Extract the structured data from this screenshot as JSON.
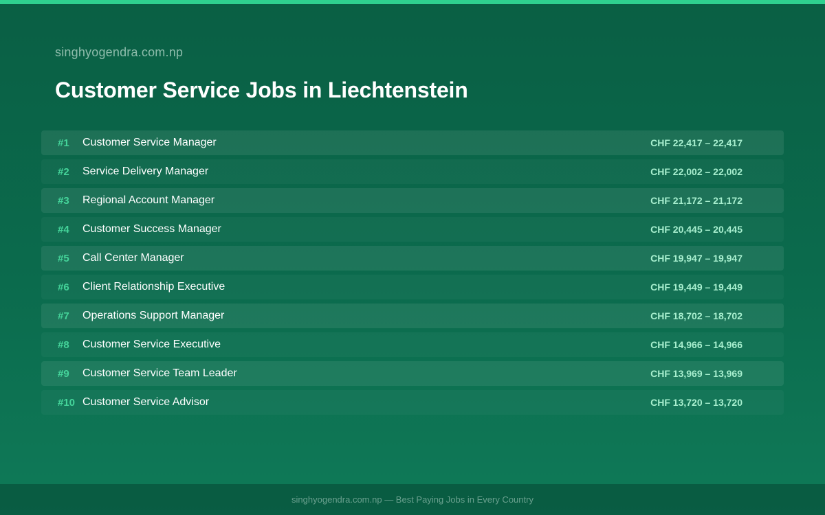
{
  "site": {
    "name": "singhyogendra.com.np"
  },
  "page": {
    "title": "Customer Service Jobs in Liechtenstein"
  },
  "jobs": [
    {
      "rank": "#1",
      "title": "Customer Service Manager",
      "salary": "CHF 22,417 – 22,417"
    },
    {
      "rank": "#2",
      "title": "Service Delivery Manager",
      "salary": "CHF 22,002 – 22,002"
    },
    {
      "rank": "#3",
      "title": "Regional Account Manager",
      "salary": "CHF 21,172 – 21,172"
    },
    {
      "rank": "#4",
      "title": "Customer Success Manager",
      "salary": "CHF 20,445 – 20,445"
    },
    {
      "rank": "#5",
      "title": "Call Center Manager",
      "salary": "CHF 19,947 – 19,947"
    },
    {
      "rank": "#6",
      "title": "Client Relationship Executive",
      "salary": "CHF 19,449 – 19,449"
    },
    {
      "rank": "#7",
      "title": "Operations Support Manager",
      "salary": "CHF 18,702 – 18,702"
    },
    {
      "rank": "#8",
      "title": "Customer Service Executive",
      "salary": "CHF 14,966 – 14,966"
    },
    {
      "rank": "#9",
      "title": "Customer Service Team Leader",
      "salary": "CHF 13,969 – 13,969"
    },
    {
      "rank": "#10",
      "title": "Customer Service Advisor",
      "salary": "CHF 13,720 – 13,720"
    }
  ],
  "footer": {
    "text": "singhyogendra.com.np — Best Paying Jobs in Every Country"
  },
  "colors": {
    "accent": "#2fd08f",
    "rank": "#45d49a",
    "salary": "#a8efcf",
    "background_top": "#0a5f44",
    "background_bottom": "#0f7a58"
  }
}
